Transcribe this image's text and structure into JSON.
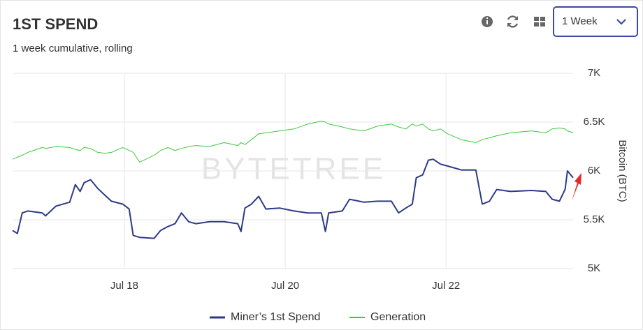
{
  "chart_data": {
    "type": "line",
    "title": "1ST SPEND",
    "subtitle": "1 week cumulative, rolling",
    "range_selector": "1 Week",
    "watermark": "BYTETREE",
    "y_axis_label": "Bitcoin (BTC)",
    "x": [
      16.61,
      16.67,
      16.73,
      16.8,
      16.98,
      17.02,
      17.15,
      17.32,
      17.39,
      17.45,
      17.5,
      17.58,
      17.67,
      17.76,
      17.84,
      17.98,
      18.06,
      18.11,
      18.19,
      18.37,
      18.45,
      18.54,
      18.63,
      18.71,
      18.8,
      18.89,
      19.06,
      19.24,
      19.41,
      19.45,
      19.5,
      19.58,
      19.67,
      19.76,
      19.93,
      20.11,
      20.28,
      20.45,
      20.5,
      20.54,
      20.71,
      20.8,
      20.98,
      21.15,
      21.32,
      21.41,
      21.5,
      21.58,
      21.63,
      21.71,
      21.78,
      21.84,
      21.93,
      22.02,
      22.19,
      22.37,
      22.45,
      22.54,
      22.63,
      22.8,
      23.06,
      23.24,
      23.32,
      23.41,
      23.48,
      23.51,
      23.58
    ],
    "series": [
      {
        "name": "Miner’s 1st Spend",
        "color": "#2e3a87",
        "width": 2,
        "values": [
          5390,
          5360,
          5570,
          5590,
          5570,
          5540,
          5640,
          5680,
          5860,
          5790,
          5880,
          5910,
          5820,
          5750,
          5690,
          5660,
          5610,
          5340,
          5320,
          5310,
          5390,
          5430,
          5460,
          5570,
          5480,
          5460,
          5480,
          5480,
          5460,
          5380,
          5620,
          5660,
          5740,
          5610,
          5620,
          5590,
          5570,
          5570,
          5380,
          5570,
          5590,
          5710,
          5680,
          5690,
          5690,
          5570,
          5620,
          5660,
          5930,
          5960,
          6110,
          6120,
          6070,
          6050,
          6010,
          6010,
          5660,
          5690,
          5810,
          5790,
          5800,
          5790,
          5710,
          5690,
          5810,
          6000,
          5930
        ]
      },
      {
        "name": "Generation",
        "color": "#3cc93c",
        "width": 1,
        "values": [
          6120,
          6140,
          6160,
          6190,
          6240,
          6230,
          6250,
          6240,
          6220,
          6210,
          6240,
          6230,
          6190,
          6180,
          6190,
          6240,
          6210,
          6190,
          6090,
          6160,
          6210,
          6240,
          6210,
          6230,
          6250,
          6260,
          6250,
          6290,
          6260,
          6290,
          6270,
          6320,
          6380,
          6390,
          6410,
          6430,
          6480,
          6510,
          6500,
          6480,
          6450,
          6430,
          6410,
          6460,
          6480,
          6450,
          6430,
          6480,
          6460,
          6480,
          6430,
          6410,
          6430,
          6380,
          6320,
          6290,
          6320,
          6340,
          6360,
          6390,
          6410,
          6390,
          6430,
          6440,
          6430,
          6410,
          6390
        ]
      }
    ],
    "xlim": [
      16.61,
      23.58
    ],
    "xticks": [
      {
        "value": 18,
        "label": "Jul 18"
      },
      {
        "value": 20,
        "label": "Jul 20"
      },
      {
        "value": 22,
        "label": "Jul 22"
      }
    ],
    "ylim": [
      5000,
      7000
    ],
    "yticks": [
      {
        "value": 5000,
        "label": "5K"
      },
      {
        "value": 5500,
        "label": "5.5K"
      },
      {
        "value": 6000,
        "label": "6K"
      },
      {
        "value": 6500,
        "label": "6.5K"
      },
      {
        "value": 7000,
        "label": "7K"
      }
    ],
    "grid": true
  }
}
